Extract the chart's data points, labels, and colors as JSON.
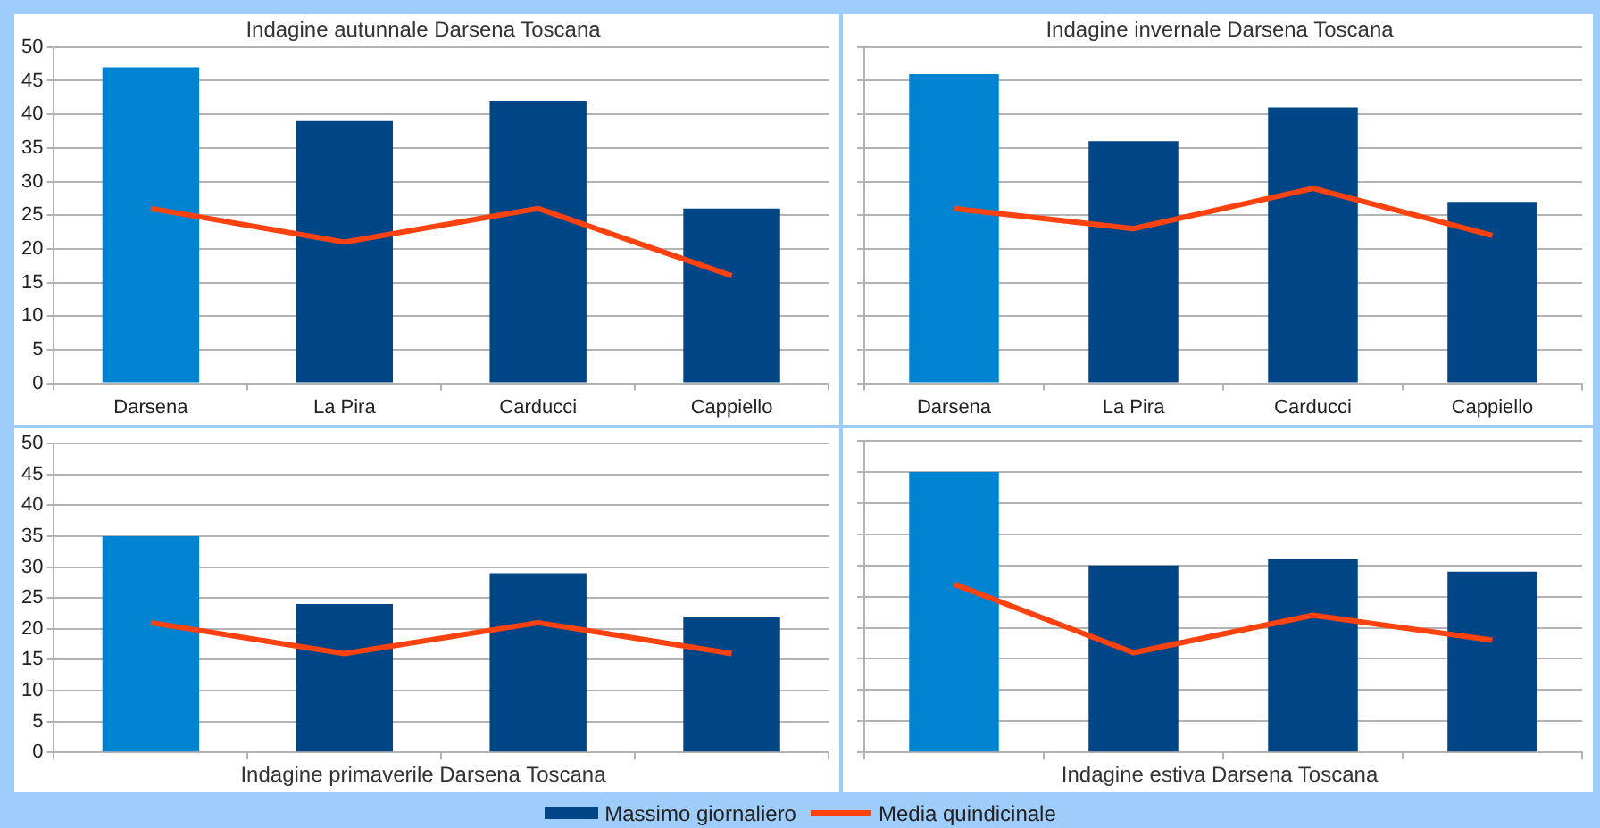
{
  "chart_data": [
    {
      "type": "bar",
      "title": "Indagine autunnale Darsena Toscana",
      "categories": [
        "Darsena",
        "La Pira",
        "Carducci",
        "Cappiello"
      ],
      "series": [
        {
          "colors": [
            "#0084d1",
            "#004586",
            "#004586",
            "#004586"
          ],
          "values": [
            47,
            39,
            42,
            26
          ]
        },
        {
          "type": "line",
          "color": "#ff420e",
          "values": [
            26,
            21,
            26,
            16
          ]
        }
      ],
      "ylim": [
        0,
        50
      ],
      "yticks": [
        0,
        5,
        10,
        15,
        20,
        25,
        30,
        35,
        40,
        45,
        50
      ],
      "grid": true,
      "marker": "none"
    },
    {
      "type": "bar",
      "title": "Indagine invernale Darsena Toscana",
      "categories": [
        "Darsena",
        "La Pira",
        "Carducci",
        "Cappiello"
      ],
      "series": [
        {
          "colors": [
            "#0084d1",
            "#004586",
            "#004586",
            "#004586"
          ],
          "values": [
            46,
            36,
            41,
            27
          ]
        },
        {
          "type": "line",
          "color": "#ff420e",
          "values": [
            26,
            23,
            29,
            22
          ]
        }
      ],
      "ylim": [
        0,
        50
      ],
      "yticks": [
        0,
        5,
        10,
        15,
        20,
        25,
        30,
        35,
        40,
        45,
        50
      ],
      "grid": true,
      "marker": "none",
      "tick_labels": "x"
    },
    {
      "type": "bar",
      "title": "Indagine primaverile Darsena Toscana",
      "categories": [
        null,
        null,
        null,
        null
      ],
      "series": [
        {
          "name": "Massimo giornaliero",
          "color": "#004586",
          "colors": [
            "#0084d1",
            "#004586",
            "#004586",
            "#004586"
          ],
          "values": [
            35,
            24,
            29,
            22
          ]
        },
        {
          "name": "Media quindicinale",
          "type": "line",
          "color": "#ff420e",
          "values": [
            21,
            16,
            21,
            16
          ]
        }
      ],
      "ylim": [
        0,
        50
      ],
      "yticks": [
        0,
        5,
        10,
        15,
        20,
        25,
        30,
        35,
        40,
        45,
        50
      ],
      "grid": true,
      "marker": "none",
      "tick_labels": "y",
      "legend": "bottom"
    },
    {
      "type": "bar",
      "title": "Indagine estiva Darsena Toscana",
      "categories": [
        null,
        null,
        null,
        null
      ],
      "series": [
        {
          "colors": [
            "#0084d1",
            "#004586",
            "#004586",
            "#004586"
          ],
          "values": [
            45,
            30,
            31,
            29
          ]
        },
        {
          "type": "line",
          "color": "#ff420e",
          "values": [
            27,
            16,
            22,
            18
          ]
        }
      ],
      "ylim": [
        0,
        50
      ],
      "yticks": [
        0,
        5,
        10,
        15,
        20,
        25,
        30,
        35,
        40,
        45,
        50
      ],
      "grid": true,
      "marker": "none",
      "tick_labels": false
    }
  ]
}
